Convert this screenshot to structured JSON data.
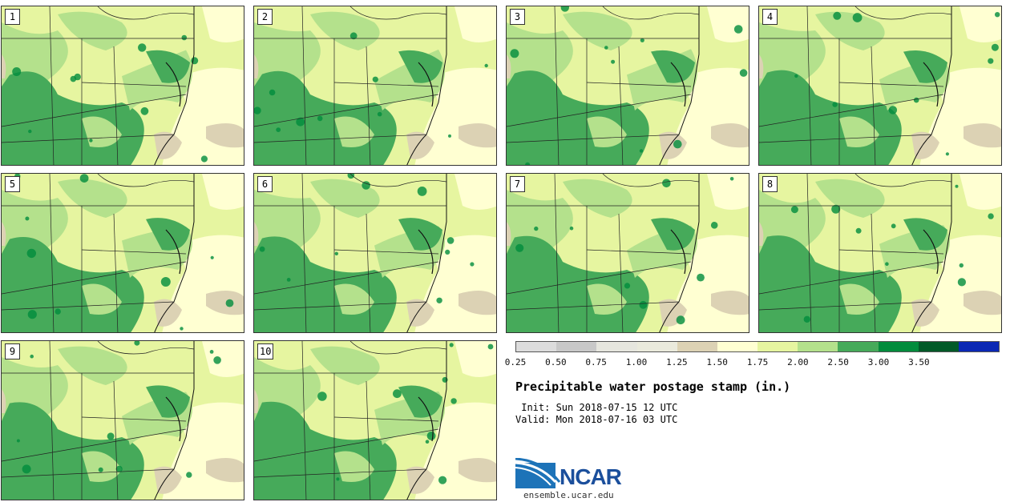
{
  "panels": [
    {
      "label": "1"
    },
    {
      "label": "2"
    },
    {
      "label": "3"
    },
    {
      "label": "4"
    },
    {
      "label": "5"
    },
    {
      "label": "6"
    },
    {
      "label": "7"
    },
    {
      "label": "8"
    },
    {
      "label": "9"
    },
    {
      "label": "10"
    }
  ],
  "colorbar": {
    "colors": [
      "#dcdcdc",
      "#c8c8c8",
      "#e6e6de",
      "#eaeadc",
      "#dcd2b4",
      "#ffffd2",
      "#e6f5a0",
      "#b4e18c",
      "#46aa5a",
      "#008c3c",
      "#005a28",
      "#0a28b4"
    ],
    "ticks": [
      "0.25",
      "0.50",
      "0.75",
      "1.00",
      "1.25",
      "1.50",
      "1.75",
      "2.00",
      "2.50",
      "3.00",
      "3.50"
    ]
  },
  "legend": {
    "title": "Precipitable water postage stamp (in.)",
    "init": " Init: Sun 2018-07-15 12 UTC",
    "valid": "Valid: Mon 2018-07-16 03 UTC"
  },
  "logo": {
    "name": "NCAR",
    "site": "ensemble.ucar.edu"
  }
}
